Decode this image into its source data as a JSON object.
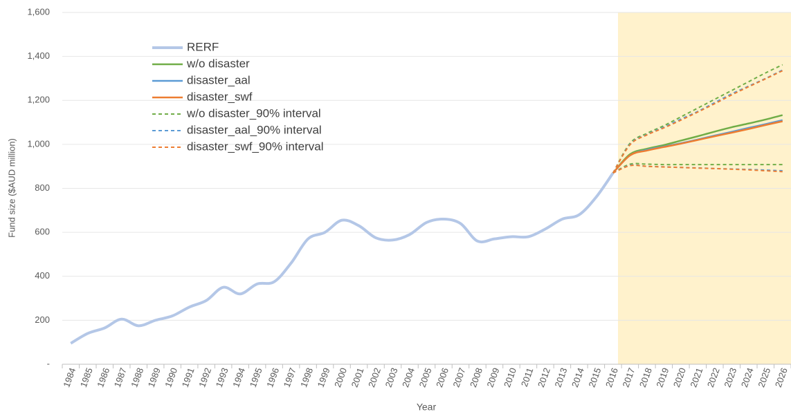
{
  "chart_data": {
    "type": "line",
    "x_label": "Year",
    "y_label": "Fund size ($AUD million)",
    "categories": [
      "1984",
      "1985",
      "1986",
      "1987",
      "1988",
      "1989",
      "1990",
      "1991",
      "1992",
      "1993",
      "1994",
      "1995",
      "1996",
      "1997",
      "1998",
      "1999",
      "2000",
      "2001",
      "2002",
      "2003",
      "2004",
      "2005",
      "2006",
      "2007",
      "2008",
      "2009",
      "2010",
      "2011",
      "2012",
      "2013",
      "2014",
      "2015",
      "2016",
      "2017",
      "2018",
      "2019",
      "2020",
      "2021",
      "2022",
      "2023",
      "2024",
      "2025",
      "2026"
    ],
    "ylim": [
      0,
      1600
    ],
    "yticks": [
      {
        "value": 0,
        "label": "-"
      },
      200,
      400,
      600,
      800,
      {
        "value": 1000,
        "label": "1,000"
      },
      {
        "value": 1200,
        "label": "1,200"
      },
      {
        "value": 1400,
        "label": "1,400"
      },
      {
        "value": 1600,
        "label": "1,600"
      }
    ],
    "grid": true,
    "series": [
      {
        "name": "RERF",
        "color": "#b4c7e7",
        "width": 4,
        "dashed": false,
        "values": [
          95,
          140,
          165,
          205,
          175,
          200,
          220,
          260,
          290,
          350,
          320,
          365,
          375,
          460,
          570,
          600,
          655,
          630,
          575,
          565,
          590,
          645,
          660,
          640,
          560,
          570,
          580,
          580,
          615,
          660,
          680,
          760,
          870,
          null,
          null,
          null,
          null,
          null,
          null,
          null,
          null,
          null,
          null
        ]
      },
      {
        "name": "w/o disaster",
        "color": "#70ad47",
        "width": 2.5,
        "dashed": false,
        "values": [
          null,
          null,
          null,
          null,
          null,
          null,
          null,
          null,
          null,
          null,
          null,
          null,
          null,
          null,
          null,
          null,
          null,
          null,
          null,
          null,
          null,
          null,
          null,
          null,
          null,
          null,
          null,
          null,
          null,
          null,
          null,
          null,
          870,
          955,
          980,
          997,
          1017,
          1037,
          1058,
          1078,
          1095,
          1113,
          1133
        ]
      },
      {
        "name": "disaster_aal",
        "color": "#5b9bd5",
        "width": 2.5,
        "dashed": false,
        "values": [
          null,
          null,
          null,
          null,
          null,
          null,
          null,
          null,
          null,
          null,
          null,
          null,
          null,
          null,
          null,
          null,
          null,
          null,
          null,
          null,
          null,
          null,
          null,
          null,
          null,
          null,
          null,
          null,
          null,
          null,
          null,
          null,
          870,
          950,
          975,
          990,
          1005,
          1022,
          1040,
          1057,
          1075,
          1092,
          1110
        ]
      },
      {
        "name": "disaster_swf",
        "color": "#ed7d31",
        "width": 2.5,
        "dashed": false,
        "values": [
          null,
          null,
          null,
          null,
          null,
          null,
          null,
          null,
          null,
          null,
          null,
          null,
          null,
          null,
          null,
          null,
          null,
          null,
          null,
          null,
          null,
          null,
          null,
          null,
          null,
          null,
          null,
          null,
          null,
          null,
          null,
          null,
          870,
          950,
          972,
          988,
          1003,
          1020,
          1037,
          1053,
          1070,
          1088,
          1105
        ]
      },
      {
        "name": "w/o disaster_90% interval",
        "color": "#70ad47",
        "width": 2,
        "dashed": true,
        "upper": [
          null,
          null,
          null,
          null,
          null,
          null,
          null,
          null,
          null,
          null,
          null,
          null,
          null,
          null,
          null,
          null,
          null,
          null,
          null,
          null,
          null,
          null,
          null,
          null,
          null,
          null,
          null,
          null,
          null,
          null,
          null,
          null,
          870,
          1005,
          1050,
          1085,
          1125,
          1165,
          1205,
          1245,
          1285,
          1325,
          1362
        ],
        "lower": [
          null,
          null,
          null,
          null,
          null,
          null,
          null,
          null,
          null,
          null,
          null,
          null,
          null,
          null,
          null,
          null,
          null,
          null,
          null,
          null,
          null,
          null,
          null,
          null,
          null,
          null,
          null,
          null,
          null,
          null,
          null,
          null,
          870,
          910,
          910,
          908,
          908,
          908,
          908,
          908,
          908,
          908,
          908
        ]
      },
      {
        "name": "disaster_aal_90% interval",
        "color": "#5b9bd5",
        "width": 2,
        "dashed": true,
        "upper": [
          null,
          null,
          null,
          null,
          null,
          null,
          null,
          null,
          null,
          null,
          null,
          null,
          null,
          null,
          null,
          null,
          null,
          null,
          null,
          null,
          null,
          null,
          null,
          null,
          null,
          null,
          null,
          null,
          null,
          null,
          null,
          null,
          870,
          1000,
          1045,
          1078,
          1115,
          1150,
          1190,
          1230,
          1265,
          1300,
          1338
        ],
        "lower": [
          null,
          null,
          null,
          null,
          null,
          null,
          null,
          null,
          null,
          null,
          null,
          null,
          null,
          null,
          null,
          null,
          null,
          null,
          null,
          null,
          null,
          null,
          null,
          null,
          null,
          null,
          null,
          null,
          null,
          null,
          null,
          null,
          870,
          905,
          900,
          898,
          895,
          893,
          890,
          888,
          886,
          883,
          880
        ]
      },
      {
        "name": "disaster_swf_90% interval",
        "color": "#ed7d31",
        "width": 2,
        "dashed": true,
        "upper": [
          null,
          null,
          null,
          null,
          null,
          null,
          null,
          null,
          null,
          null,
          null,
          null,
          null,
          null,
          null,
          null,
          null,
          null,
          null,
          null,
          null,
          null,
          null,
          null,
          null,
          null,
          null,
          null,
          null,
          null,
          null,
          null,
          870,
          998,
          1043,
          1075,
          1110,
          1147,
          1185,
          1225,
          1262,
          1298,
          1335
        ],
        "lower": [
          null,
          null,
          null,
          null,
          null,
          null,
          null,
          null,
          null,
          null,
          null,
          null,
          null,
          null,
          null,
          null,
          null,
          null,
          null,
          null,
          null,
          null,
          null,
          null,
          null,
          null,
          null,
          null,
          null,
          null,
          null,
          null,
          870,
          903,
          900,
          897,
          895,
          892,
          890,
          887,
          884,
          880,
          876
        ]
      }
    ]
  }
}
